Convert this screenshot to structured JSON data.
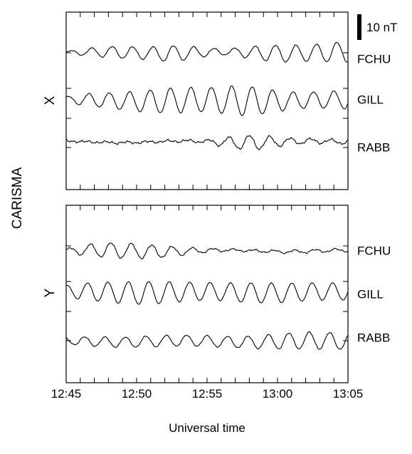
{
  "chart_data": {
    "type": "line",
    "group_label": "CARISMA",
    "xlabel": "Universal time",
    "x_ticks": [
      "12:45",
      "12:50",
      "12:55",
      "13:00",
      "13:05"
    ],
    "scale_bar_label": "10 nT",
    "panels": [
      {
        "component": "X",
        "series": [
          {
            "name": "FCHU",
            "amp": [
              0.15,
              0.35,
              0.55,
              0.6,
              0.6,
              0.8,
              0.7,
              0.4,
              0.3,
              0.55,
              0.8,
              0.85,
              0.8,
              0.95,
              1.0
            ],
            "period_min": 1.45,
            "noise": 0.03
          },
          {
            "name": "GILL",
            "amp": [
              0.3,
              0.6,
              0.75,
              0.9,
              1.1,
              1.25,
              1.25,
              1.2,
              1.4,
              1.5,
              1.2,
              0.9,
              0.8,
              0.85,
              0.9
            ],
            "period_min": 1.45,
            "noise": 0.03
          },
          {
            "name": "RABB",
            "amp": [
              0.05,
              0.05,
              0.08,
              0.08,
              0.08,
              0.08,
              0.1,
              0.15,
              0.5,
              0.75,
              0.6,
              0.35,
              0.25,
              0.2,
              0.2
            ],
            "period_min": 1.45,
            "noise": 0.07
          }
        ]
      },
      {
        "component": "Y",
        "series": [
          {
            "name": "FCHU",
            "amp": [
              0.2,
              0.55,
              0.75,
              0.75,
              0.7,
              0.55,
              0.35,
              0.2,
              0.12,
              0.1,
              0.12,
              0.15,
              0.15,
              0.15,
              0.15
            ],
            "period_min": 1.45,
            "noise": 0.05
          },
          {
            "name": "GILL",
            "amp": [
              0.6,
              0.85,
              1.0,
              1.1,
              1.15,
              1.05,
              0.95,
              0.9,
              0.9,
              1.0,
              1.0,
              0.95,
              0.9,
              0.85,
              0.85
            ],
            "period_min": 1.45,
            "noise": 0.02
          },
          {
            "name": "RABB",
            "amp": [
              0.35,
              0.45,
              0.5,
              0.5,
              0.55,
              0.55,
              0.55,
              0.55,
              0.55,
              0.6,
              0.7,
              0.8,
              0.85,
              0.85,
              0.8
            ],
            "period_min": 1.45,
            "noise": 0.03
          }
        ]
      }
    ]
  }
}
